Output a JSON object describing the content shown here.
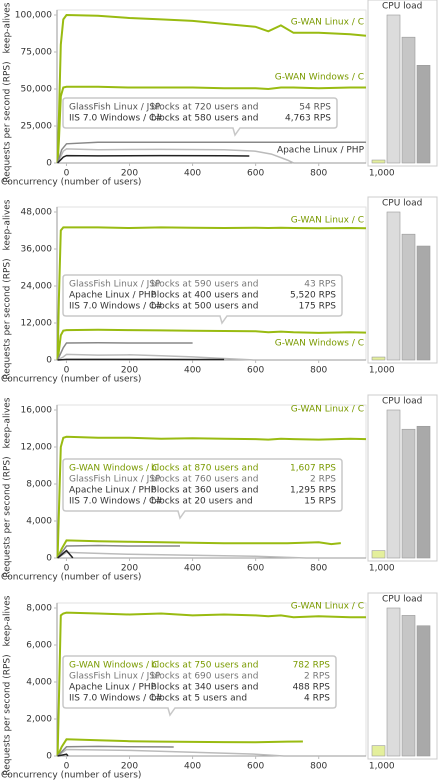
{
  "chart_data": [
    {
      "type": "line",
      "ylabel": "Requests per second (RPS)",
      "ylabel_note": "keep-alives",
      "xlabel": "Concurrency (number of users)",
      "xlim": [
        -30,
        950
      ],
      "xticks": [
        0,
        200,
        400,
        600,
        800,
        {
          "value": 1000,
          "label": "1,000"
        }
      ],
      "ylim": [
        0,
        100000
      ],
      "yticks": [
        0,
        {
          "value": 25000,
          "label": "25,000"
        },
        {
          "value": 50000,
          "label": "50,000"
        },
        {
          "value": 75000,
          "label": "75,000"
        },
        {
          "value": 100000,
          "label": "100,000"
        }
      ],
      "series": [
        {
          "name": "G-WAN Linux / C",
          "color": "#99bb11",
          "x": [
            -28,
            -24,
            -18,
            -10,
            0,
            100,
            200,
            300,
            400,
            500,
            600,
            640,
            680,
            720,
            800,
            900,
            950
          ],
          "values": [
            0,
            30000,
            80000,
            97000,
            100000,
            99500,
            98000,
            97000,
            96000,
            94000,
            92000,
            89000,
            93000,
            88000,
            88000,
            87000,
            86000
          ]
        },
        {
          "name": "G-WAN Windows / C",
          "color": "#99bb11",
          "x": [
            -28,
            -24,
            -18,
            -10,
            0,
            100,
            200,
            300,
            400,
            500,
            600,
            640,
            680,
            720,
            800,
            900,
            950
          ],
          "values": [
            0,
            15000,
            45000,
            51000,
            51500,
            51500,
            51000,
            51000,
            51000,
            50500,
            50500,
            50000,
            51000,
            51000,
            50500,
            51000,
            51000
          ]
        },
        {
          "color": "#bbbbbb",
          "x": [
            -28,
            -10,
            0,
            100,
            300,
            500,
            600,
            650,
            700,
            720
          ],
          "values": [
            0,
            8000,
            9500,
            9000,
            9200,
            9000,
            8000,
            6000,
            2000,
            54
          ]
        },
        {
          "name": "Apache Linux / PHP",
          "color": "#888888",
          "x": [
            -28,
            -15,
            0,
            100,
            300,
            500,
            700,
            950
          ],
          "values": [
            0,
            9000,
            13000,
            14000,
            14000,
            14000,
            14000,
            14000
          ]
        },
        {
          "color": "#222222",
          "x": [
            -28,
            -10,
            0,
            100,
            300,
            500,
            580
          ],
          "values": [
            0,
            4000,
            5000,
            4800,
            5000,
            4900,
            4763
          ]
        }
      ],
      "annotation": {
        "rows": [
          [
            "GlassFish Linux / JSP",
            "blocks at 720 users and",
            "54 RPS"
          ],
          [
            "IIS 7.0 Windows / C#",
            "blocks at 580 users and",
            "4,763 RPS"
          ]
        ],
        "colors": [
          "#555555",
          "#333333"
        ]
      },
      "cpu_load": {
        "title": "CPU load",
        "values": [
          2,
          100,
          85,
          66
        ],
        "colors": [
          "#e4ef9c",
          "#dcdcdc",
          "#c6c6c6",
          "#a9a9a9"
        ]
      }
    },
    {
      "type": "line",
      "ylabel": "Requests per second (RPS)",
      "ylabel_note": "keep-alives",
      "xlabel": "Concurrency (number of users)",
      "xlim": [
        -30,
        950
      ],
      "xticks": [
        0,
        200,
        400,
        600,
        800,
        {
          "value": 1000,
          "label": "1,000"
        }
      ],
      "ylim": [
        0,
        48000
      ],
      "yticks": [
        0,
        {
          "value": 12000,
          "label": "12,000"
        },
        {
          "value": 24000,
          "label": "24,000"
        },
        {
          "value": 36000,
          "label": "36,000"
        },
        {
          "value": 48000,
          "label": "48,000"
        }
      ],
      "series": [
        {
          "name": "G-WAN Linux / C",
          "color": "#99bb11",
          "x": [
            -28,
            -24,
            -18,
            -10,
            0,
            100,
            200,
            300,
            400,
            500,
            600,
            640,
            680,
            720,
            800,
            900,
            950
          ],
          "values": [
            0,
            20000,
            42000,
            43000,
            43000,
            43000,
            42800,
            43000,
            42900,
            42800,
            42900,
            42800,
            42900,
            42800,
            42700,
            42800,
            42700
          ]
        },
        {
          "name": "G-WAN Windows / C",
          "color": "#99bb11",
          "x": [
            -28,
            -24,
            -18,
            -10,
            0,
            100,
            200,
            300,
            400,
            500,
            600,
            640,
            680,
            720,
            800,
            900,
            950
          ],
          "values": [
            0,
            3000,
            8000,
            9500,
            9700,
            9800,
            9700,
            9600,
            9500,
            9400,
            9300,
            9000,
            9200,
            9000,
            8800,
            9000,
            8900
          ]
        },
        {
          "color": "#bbbbbb",
          "x": [
            -28,
            -10,
            0,
            100,
            200,
            300,
            400,
            500,
            590
          ],
          "values": [
            0,
            1000,
            1800,
            1600,
            1700,
            1400,
            1000,
            500,
            43
          ]
        },
        {
          "color": "#888888",
          "x": [
            -28,
            -10,
            0,
            100,
            200,
            300,
            400
          ],
          "values": [
            0,
            4000,
            5500,
            5600,
            5500,
            5500,
            5520
          ]
        },
        {
          "color": "#222222",
          "x": [
            -28,
            0,
            100,
            200,
            300,
            400,
            500
          ],
          "values": [
            0,
            200,
            200,
            190,
            180,
            175,
            175
          ]
        }
      ],
      "annotation": {
        "rows": [
          [
            "GlassFish Linux / JSP",
            "blocks at 590 users and",
            "43 RPS"
          ],
          [
            "Apache Linux / PHP",
            "blocks at 400 users and",
            "5,520 RPS"
          ],
          [
            "IIS 7.0 Windows / C#",
            "blocks at 500 users and",
            "175 RPS"
          ]
        ],
        "colors": [
          "#777777",
          "#333333",
          "#333333"
        ]
      },
      "cpu_load": {
        "title": "CPU load",
        "values": [
          2,
          100,
          85,
          77
        ],
        "colors": [
          "#e4ef9c",
          "#dcdcdc",
          "#c6c6c6",
          "#a9a9a9"
        ]
      }
    },
    {
      "type": "line",
      "ylabel": "Requests per second (RPS)",
      "ylabel_note": "keep-alives",
      "xlabel": "Concurrency (number of users)",
      "xlim": [
        -30,
        950
      ],
      "xticks": [
        0,
        200,
        400,
        600,
        800,
        {
          "value": 1000,
          "label": "1,000"
        }
      ],
      "ylim": [
        0,
        16000
      ],
      "yticks": [
        0,
        {
          "value": 4000,
          "label": "4,000"
        },
        {
          "value": 8000,
          "label": "8,000"
        },
        {
          "value": 12000,
          "label": "12,000"
        },
        {
          "value": 16000,
          "label": "16,000"
        }
      ],
      "series": [
        {
          "name": "G-WAN Linux / C",
          "color": "#99bb11",
          "x": [
            -28,
            -24,
            -18,
            -10,
            0,
            100,
            200,
            300,
            400,
            500,
            600,
            640,
            680,
            720,
            800,
            900,
            950
          ],
          "values": [
            0,
            5000,
            12000,
            13000,
            13100,
            13000,
            13000,
            12900,
            12950,
            12900,
            12850,
            12800,
            12900,
            12850,
            12800,
            12900,
            12850
          ]
        },
        {
          "color": "#99bb11",
          "x": [
            -28,
            -15,
            0,
            100,
            200,
            300,
            400,
            500,
            600,
            700,
            800,
            840,
            870
          ],
          "values": [
            0,
            1000,
            1900,
            1800,
            1750,
            1700,
            1650,
            1600,
            1600,
            1600,
            1700,
            1500,
            1607
          ]
        },
        {
          "color": "#bbbbbb",
          "x": [
            -28,
            0,
            100,
            200,
            400,
            600,
            760
          ],
          "values": [
            0,
            600,
            500,
            400,
            300,
            200,
            2
          ]
        },
        {
          "color": "#888888",
          "x": [
            -28,
            0,
            100,
            200,
            300,
            360
          ],
          "values": [
            0,
            1300,
            1350,
            1300,
            1300,
            1295
          ]
        },
        {
          "color": "#222222",
          "x": [
            -28,
            0,
            20
          ],
          "values": [
            0,
            800,
            15
          ]
        }
      ],
      "annotation": {
        "rows": [
          [
            "G-WAN Windows / C",
            "blocks at 870 users and",
            "1,607 RPS"
          ],
          [
            "GlassFish Linux / JSP",
            "blocks at 760 users and",
            "2 RPS"
          ],
          [
            "Apache Linux / PHP",
            "blocks at 360 users and",
            "1,295 RPS"
          ],
          [
            "IIS 7.0 Windows / C#",
            "blocks at  20 users and",
            "15 RPS"
          ]
        ],
        "colors": [
          "#7a9a00",
          "#777777",
          "#333333",
          "#333333"
        ]
      },
      "cpu_load": {
        "title": "CPU load",
        "values": [
          5,
          100,
          87,
          89
        ],
        "colors": [
          "#e4ef9c",
          "#dcdcdc",
          "#c6c6c6",
          "#a9a9a9"
        ]
      }
    },
    {
      "type": "line",
      "ylabel": "Requests per second (RPS)",
      "ylabel_note": "keep-alives",
      "xlabel": "Concurrency (number of users)",
      "xlim": [
        -30,
        950
      ],
      "xticks": [
        0,
        200,
        400,
        600,
        800,
        {
          "value": 1000,
          "label": "1,000"
        }
      ],
      "ylim": [
        0,
        8000
      ],
      "yticks": [
        0,
        {
          "value": 2000,
          "label": "2,000"
        },
        {
          "value": 4000,
          "label": "4,000"
        },
        {
          "value": 6000,
          "label": "6,000"
        },
        {
          "value": 8000,
          "label": "8,000"
        }
      ],
      "series": [
        {
          "name": "G-WAN Linux / C",
          "color": "#99bb11",
          "x": [
            -28,
            -24,
            -18,
            -10,
            0,
            100,
            200,
            300,
            400,
            500,
            600,
            640,
            680,
            720,
            800,
            900,
            950
          ],
          "values": [
            0,
            3000,
            7600,
            7700,
            7750,
            7700,
            7650,
            7700,
            7600,
            7650,
            7600,
            7550,
            7600,
            7500,
            7550,
            7500,
            7500
          ]
        },
        {
          "color": "#99bb11",
          "x": [
            -28,
            -15,
            0,
            100,
            200,
            300,
            400,
            500,
            600,
            700,
            750
          ],
          "values": [
            0,
            500,
            900,
            850,
            800,
            780,
            760,
            750,
            740,
            780,
            782
          ]
        },
        {
          "color": "#bbbbbb",
          "x": [
            -28,
            0,
            200,
            400,
            600,
            690
          ],
          "values": [
            0,
            350,
            300,
            200,
            100,
            2
          ]
        },
        {
          "color": "#888888",
          "x": [
            -28,
            0,
            100,
            200,
            300,
            340
          ],
          "values": [
            0,
            500,
            520,
            500,
            490,
            488
          ]
        },
        {
          "color": "#222222",
          "x": [
            -28,
            0,
            5
          ],
          "values": [
            0,
            100,
            4
          ]
        }
      ],
      "annotation": {
        "rows": [
          [
            "G-WAN Windows / C",
            "blocks at 750 users and",
            "782 RPS"
          ],
          [
            "GlassFish Linux / JSP",
            "blocks at 690 users and",
            "2 RPS"
          ],
          [
            "Apache Linux / PHP",
            "blocks at 340 users and",
            "488 RPS"
          ],
          [
            "IIS 7.0 Windows / C#",
            "blocks at   5 users and",
            "4 RPS"
          ]
        ],
        "colors": [
          "#7a9a00",
          "#777777",
          "#333333",
          "#333333"
        ]
      },
      "cpu_load": {
        "title": "CPU load",
        "values": [
          7,
          100,
          95,
          88
        ],
        "colors": [
          "#e4ef9c",
          "#dcdcdc",
          "#c6c6c6",
          "#a9a9a9"
        ]
      }
    }
  ]
}
